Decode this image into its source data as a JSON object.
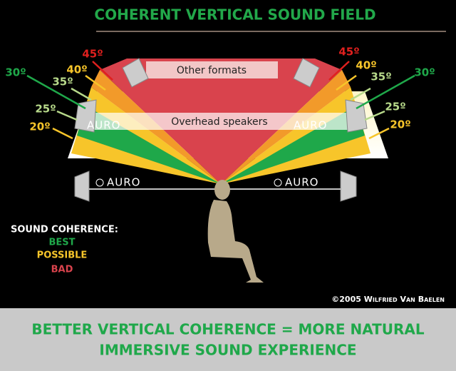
{
  "header": {
    "title": "COHERENT VERTICAL SOUND FIELD"
  },
  "angle_labels": {
    "left": [
      "45º",
      "40º",
      "35º",
      "30º",
      "25º",
      "20º"
    ],
    "right": [
      "45º",
      "40º",
      "35º",
      "30º",
      "25º",
      "20º"
    ]
  },
  "bands": {
    "top": "Other formats",
    "middle": "Overhead speakers"
  },
  "logos": [
    "AURO",
    "AURO",
    "AURO",
    "AURO"
  ],
  "legend": {
    "title": "SOUND COHERENCE:",
    "items": [
      "BEST",
      "POSSIBLE",
      "BAD"
    ]
  },
  "credit": "©2005 Wilfried Van Baelen",
  "footer": {
    "lines": [
      "BETTER VERTICAL COHERENCE = MORE NATURAL",
      "IMMERSIVE SOUND EXPERIENCE"
    ]
  }
}
